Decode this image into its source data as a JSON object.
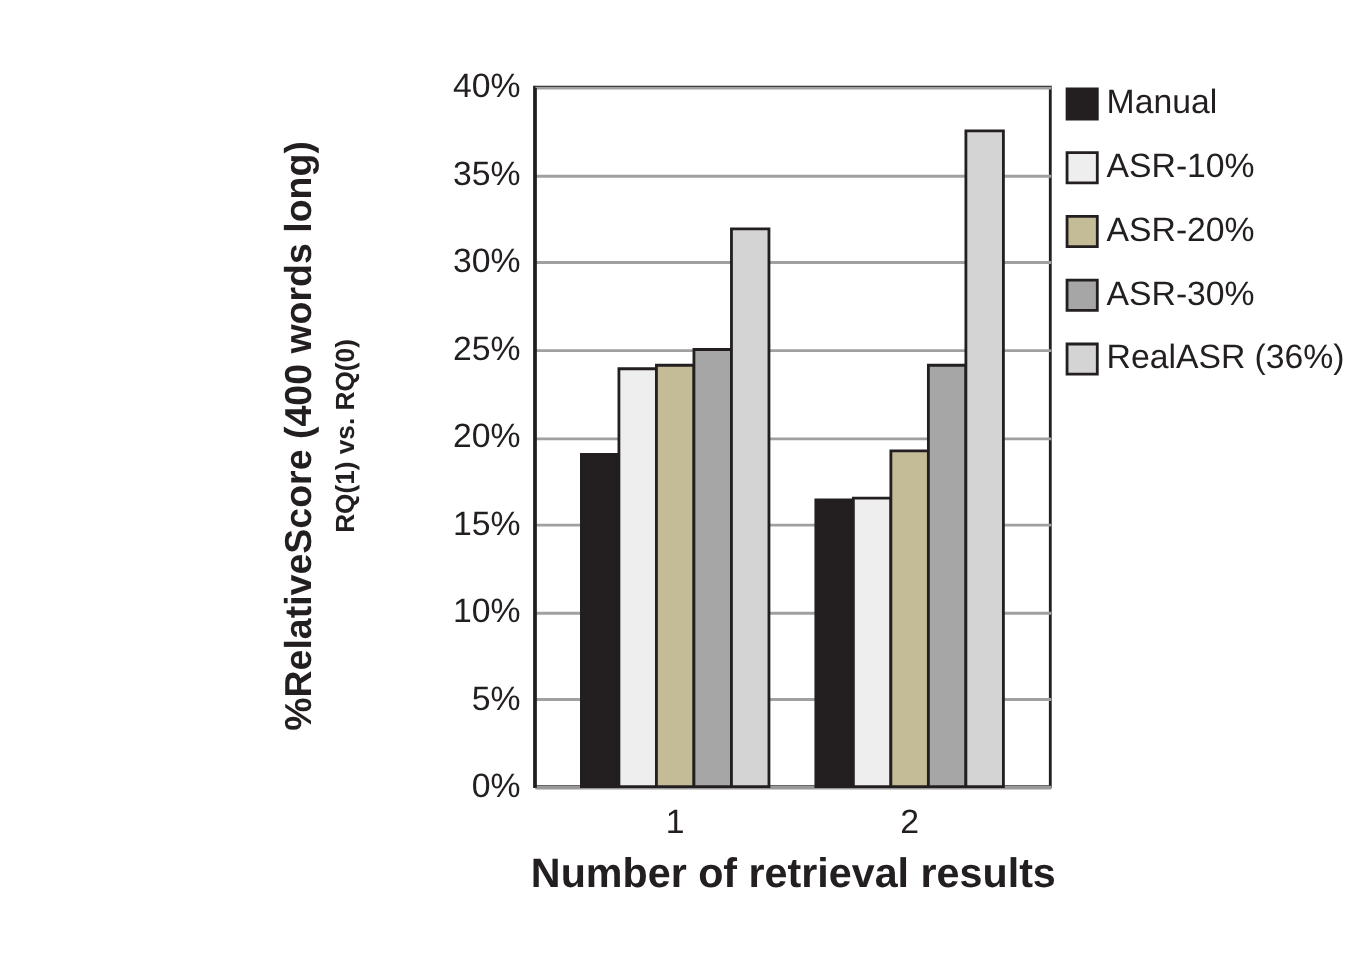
{
  "chart_data": {
    "type": "bar",
    "xlabel": "Number of retrieval results",
    "ylabel": "%RelativeScore (400 words long)",
    "annotations": [
      "RQ(1) vs. RQ(0)"
    ],
    "categories": [
      "1",
      "2"
    ],
    "series": [
      {
        "name": "Manual",
        "color": "#231f20",
        "values": [
          19.0,
          16.4
        ]
      },
      {
        "name": "ASR-10%",
        "color": "#eeeeee",
        "values": [
          23.9,
          16.5
        ]
      },
      {
        "name": "ASR-20%",
        "color": "#c4bc96",
        "values": [
          24.1,
          19.2
        ]
      },
      {
        "name": "ASR-30%",
        "color": "#a6a6a6",
        "values": [
          25.0,
          24.1
        ]
      },
      {
        "name": "RealASR (36%)",
        "color": "#d4d4d4",
        "values": [
          31.9,
          37.5
        ]
      }
    ],
    "ylim": [
      0,
      40
    ],
    "yticks": [
      {
        "value": 0,
        "label": "0%"
      },
      {
        "value": 5,
        "label": "5%"
      },
      {
        "value": 10,
        "label": "10%"
      },
      {
        "value": 15,
        "label": "15%"
      },
      {
        "value": 20,
        "label": "20%"
      },
      {
        "value": 25,
        "label": "25%"
      },
      {
        "value": 30,
        "label": "30%"
      },
      {
        "value": 35,
        "label": "35%"
      },
      {
        "value": 40,
        "label": "40%"
      }
    ],
    "grid": "y",
    "legend": "right"
  }
}
